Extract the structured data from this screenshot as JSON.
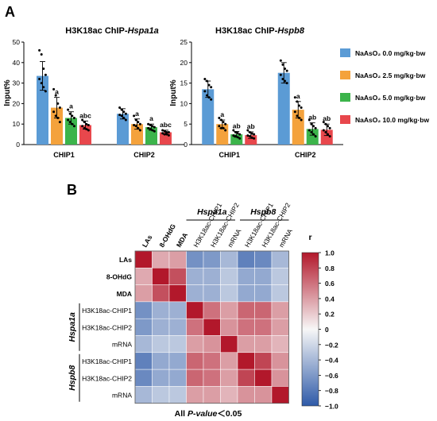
{
  "panel_a_label": "A",
  "panel_b_label": "B",
  "colors": {
    "blue": "#5b9bd5",
    "orange": "#f4a23c",
    "green": "#3cb44b",
    "red": "#e8474c",
    "heat_neg": "#2e5aa8",
    "heat_mid": "#f7f7f7",
    "heat_pos": "#b2182b"
  },
  "legend": [
    {
      "label": "NaAsO₂ 0.0 mg/kg·bw",
      "color_key": "blue"
    },
    {
      "label": "NaAsO₂ 2.5 mg/kg·bw",
      "color_key": "orange"
    },
    {
      "label": "NaAsO₂ 5.0 mg/kg·bw",
      "color_key": "green"
    },
    {
      "label": "NaAsO₂ 10.0 mg/kg·bw",
      "color_key": "red"
    }
  ],
  "chart_data": [
    {
      "type": "bar",
      "title_prefix": "H3K18ac ChIP-",
      "title_gene": "Hspa1a",
      "ylabel": "Input%",
      "ylim": [
        0,
        50
      ],
      "yticks": [
        "0",
        "10",
        "20",
        "30",
        "40",
        "50"
      ],
      "categories": [
        "CHIP1",
        "CHIP2"
      ],
      "series": [
        {
          "name": "NaAsO₂ 0.0 mg/kg·bw",
          "values": [
            33.5,
            15.0
          ],
          "errors": [
            7.0,
            2.5
          ],
          "letters": [
            "",
            ""
          ],
          "points": [
            [
              46,
              44,
              37,
              34,
              32,
              30,
              28,
              26
            ],
            [
              18,
              17,
              16,
              15,
              14.5,
              14,
              13,
              12
            ]
          ]
        },
        {
          "name": "NaAsO₂ 2.5 mg/kg·bw",
          "values": [
            18.0,
            10.0
          ],
          "errors": [
            5.0,
            2.5
          ],
          "letters": [
            "a",
            "a"
          ],
          "points": [
            [
              27,
              24,
              20,
              18,
              16,
              14,
              13,
              11
            ],
            [
              14,
              12,
              11,
              10,
              9.5,
              9,
              8,
              7
            ]
          ]
        },
        {
          "name": "NaAsO₂ 5.0 mg/kg·bw",
          "values": [
            13.0,
            8.5
          ],
          "errors": [
            3.0,
            1.5
          ],
          "letters": [
            "a",
            "a"
          ],
          "points": [
            [
              17,
              15,
              14,
              13,
              12,
              11,
              10,
              9
            ],
            [
              10,
              9.5,
              9,
              8.5,
              8,
              7.5,
              7,
              6.5
            ]
          ]
        },
        {
          "name": "NaAsO₂ 10.0 mg/kg·bw",
          "values": [
            9.5,
            6.0
          ],
          "errors": [
            2.0,
            1.0
          ],
          "letters": [
            "abc",
            "abc"
          ],
          "points": [
            [
              12,
              11,
              10,
              9.5,
              9,
              8,
              7.5,
              7
            ],
            [
              7,
              6.5,
              6,
              6,
              5.5,
              5,
              5,
              4.5
            ]
          ]
        }
      ]
    },
    {
      "type": "bar",
      "title_prefix": "H3K18ac ChIP-",
      "title_gene": "Hspb8",
      "ylabel": "Input%",
      "ylim": [
        0,
        25
      ],
      "yticks": [
        "0",
        "5",
        "10",
        "15",
        "20",
        "25"
      ],
      "categories": [
        "CHIP1",
        "CHIP2"
      ],
      "series": [
        {
          "name": "NaAsO₂ 0.0 mg/kg·bw",
          "values": [
            13.5,
            17.5
          ],
          "errors": [
            2.0,
            2.5
          ],
          "letters": [
            "",
            ""
          ],
          "points": [
            [
              16,
              15.5,
              14.5,
              14,
              13,
              12,
              11.5,
              11
            ],
            [
              20.5,
              19.5,
              18.5,
              18,
              17,
              16,
              15.5,
              15
            ]
          ]
        },
        {
          "name": "NaAsO₂ 2.5 mg/kg·bw",
          "values": [
            5.0,
            8.5
          ],
          "errors": [
            1.0,
            2.0
          ],
          "letters": [
            "a",
            "a"
          ],
          "points": [
            [
              6.5,
              6,
              5.5,
              5,
              4.5,
              4,
              4,
              3.5
            ],
            [
              11.5,
              10.5,
              9.5,
              9,
              8,
              7,
              6.5,
              6
            ]
          ]
        },
        {
          "name": "NaAsO₂ 5.0 mg/kg·bw",
          "values": [
            2.5,
            3.8
          ],
          "errors": [
            0.7,
            1.5
          ],
          "letters": [
            "ab",
            "ab"
          ],
          "points": [
            [
              3.5,
              3,
              2.8,
              2.5,
              2.2,
              2,
              1.8,
              1.5
            ],
            [
              6,
              5,
              4.5,
              4,
              3.5,
              3,
              2.5,
              2
            ]
          ]
        },
        {
          "name": "NaAsO₂ 10.0 mg/kg·bw",
          "values": [
            2.3,
            3.6
          ],
          "errors": [
            0.8,
            1.4
          ],
          "letters": [
            "ab",
            "ab"
          ],
          "points": [
            [
              3.5,
              3,
              2.7,
              2.5,
              2.2,
              2,
              1.7,
              1.5
            ],
            [
              5.5,
              5,
              4.5,
              4,
              3.5,
              3,
              2.5,
              2
            ]
          ]
        }
      ]
    },
    {
      "type": "heatmap",
      "group_labels": [
        "Hspa1a",
        "Hspb8"
      ],
      "col_labels": [
        "LAs",
        "8-OHdG",
        "MDA",
        "H3K18ac-CHIP1",
        "H3K18ac-CHIP2",
        "mRNA",
        "H3K18ac-CHIP1",
        "H3K18ac-CHIP2",
        "mRNA"
      ],
      "row_labels": [
        "LAs",
        "8-OHdG",
        "MDA",
        "H3K18ac-CHIP1",
        "H3K18ac-CHIP2",
        "mRNA",
        "H3K18ac-CHIP1",
        "H3K18ac-CHIP2",
        "mRNA"
      ],
      "bold_labels": [
        "LAs",
        "8-OHdG",
        "MDA"
      ],
      "matrix": [
        [
          1.0,
          0.35,
          0.4,
          -0.65,
          -0.6,
          -0.4,
          -0.75,
          -0.7,
          -0.4
        ],
        [
          0.35,
          1.0,
          0.75,
          -0.45,
          -0.45,
          -0.3,
          -0.5,
          -0.5,
          -0.3
        ],
        [
          0.4,
          0.75,
          1.0,
          -0.45,
          -0.45,
          -0.3,
          -0.5,
          -0.5,
          -0.3
        ],
        [
          -0.65,
          -0.45,
          -0.45,
          1.0,
          0.6,
          0.4,
          0.65,
          0.65,
          0.4
        ],
        [
          -0.6,
          -0.45,
          -0.45,
          0.6,
          1.0,
          0.45,
          0.6,
          0.6,
          0.4
        ],
        [
          -0.4,
          -0.3,
          -0.3,
          0.4,
          0.45,
          1.0,
          0.4,
          0.4,
          0.3
        ],
        [
          -0.75,
          -0.5,
          -0.5,
          0.65,
          0.6,
          0.4,
          1.0,
          0.8,
          0.45
        ],
        [
          -0.7,
          -0.5,
          -0.5,
          0.65,
          0.6,
          0.4,
          0.8,
          1.0,
          0.45
        ],
        [
          -0.4,
          -0.3,
          -0.3,
          0.4,
          0.4,
          0.3,
          0.45,
          0.45,
          1.0
        ]
      ],
      "colorbar_title": "r",
      "colorbar_ticks": [
        "1.0",
        "0.8",
        "0.6",
        "0.4",
        "0.2",
        "0",
        "−0.2",
        "−0.4",
        "−0.6",
        "−0.8",
        "−1.0"
      ],
      "colorbar_range": [
        -1.0,
        1.0
      ],
      "footnote_prefix": "All ",
      "footnote_italic": "P-value",
      "footnote_suffix": "＜0.05"
    }
  ]
}
